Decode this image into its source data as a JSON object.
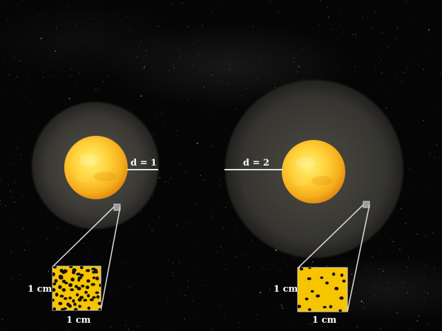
{
  "diagram": {
    "left_system": {
      "distance_label": "d = 1",
      "sample_width_label": "1 cm",
      "sample_height_label": "1 cm"
    },
    "right_system": {
      "distance_label": "d = 2",
      "sample_width_label": "1 cm",
      "sample_height_label": "1 cm"
    },
    "colors": {
      "star_core": "#fff27a",
      "star_edge": "#f0a516",
      "halo": "#4a4943",
      "sample_fill": "#f7c400",
      "guide_lines": "#d8d8d8"
    }
  }
}
